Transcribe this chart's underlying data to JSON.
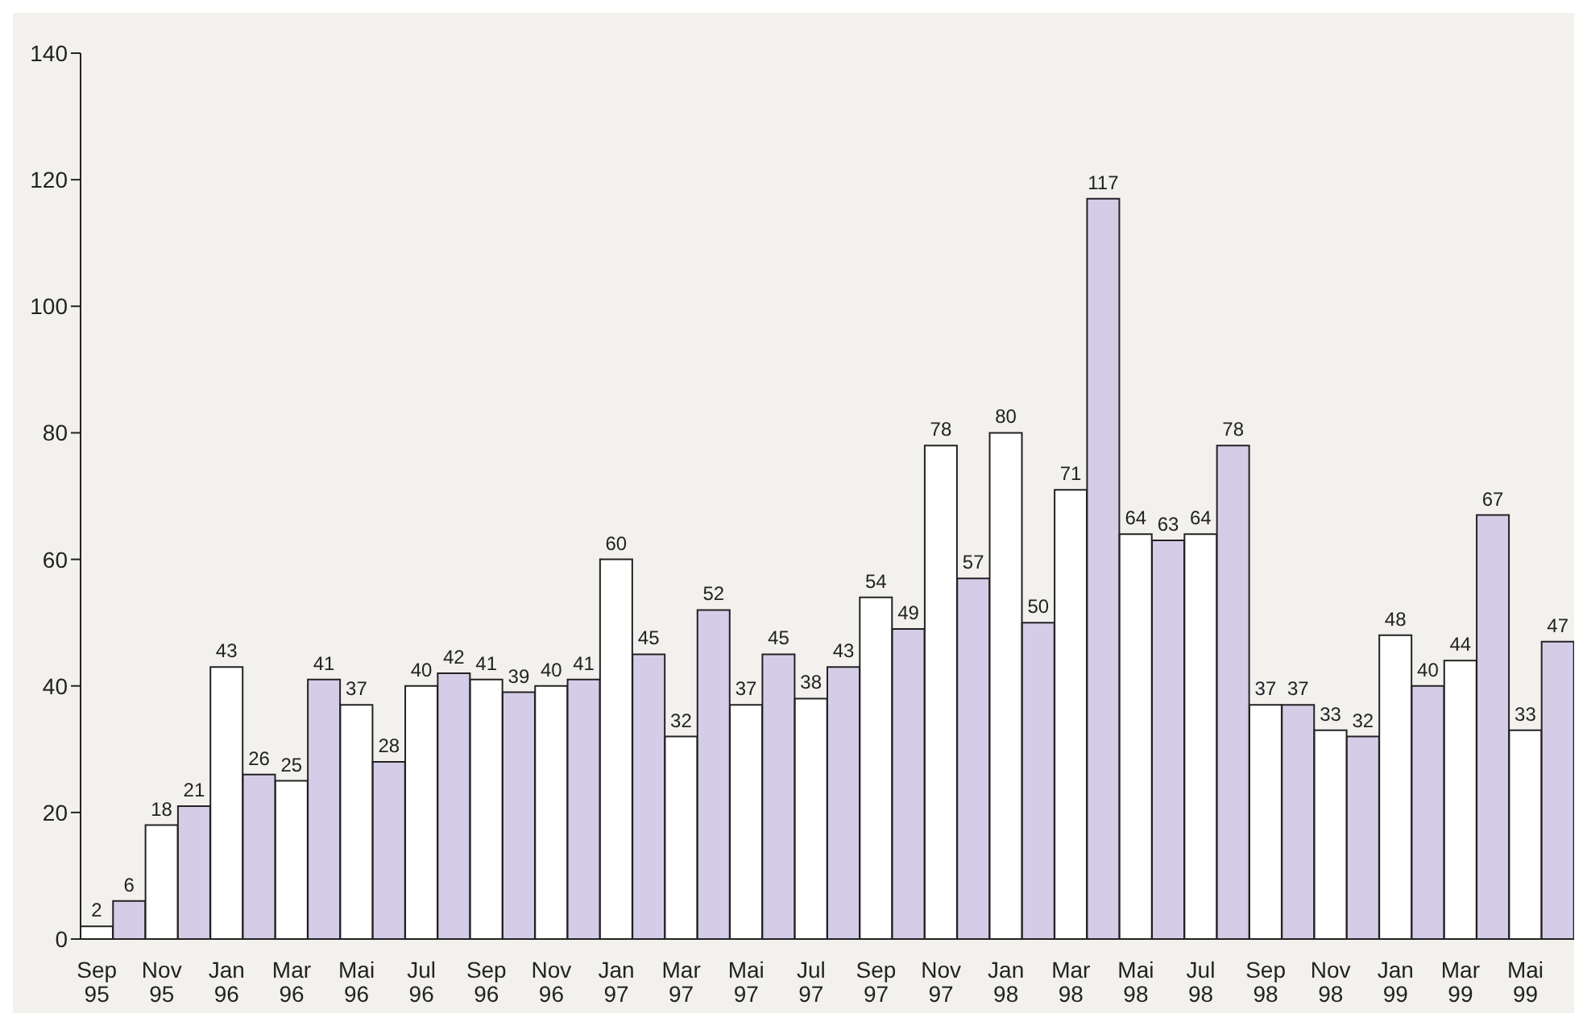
{
  "chart_data": {
    "type": "bar",
    "categories": [
      "Sep 95",
      null,
      "Nov 95",
      null,
      "Jan 96",
      null,
      "Mar 96",
      null,
      "Mai 96",
      null,
      "Jul 96",
      null,
      "Sep 96",
      null,
      "Nov 96",
      null,
      "Jan 97",
      null,
      "Mar 97",
      null,
      "Mai 97",
      null,
      "Jul 97",
      null,
      "Sep 97",
      null,
      "Nov 97",
      null,
      "Jan 98",
      null,
      "Mar 98",
      null,
      "Mai 98",
      null,
      "Jul 98",
      null,
      "Sep 98",
      null,
      "Nov 98",
      null,
      "Jan 99",
      null,
      "Mar 99",
      null,
      "Mai 99",
      null
    ],
    "values": [
      2,
      6,
      18,
      21,
      43,
      26,
      25,
      41,
      37,
      28,
      40,
      42,
      41,
      39,
      40,
      41,
      60,
      45,
      32,
      52,
      37,
      45,
      38,
      43,
      54,
      49,
      78,
      57,
      80,
      50,
      71,
      117,
      64,
      63,
      64,
      78,
      37,
      37,
      33,
      32,
      48,
      40,
      44,
      67,
      33,
      47
    ],
    "colors": [
      "#ffffff",
      "#d5cde8",
      "#ffffff",
      "#d5cde8",
      "#ffffff",
      "#d5cde8",
      "#ffffff",
      "#d5cde8",
      "#ffffff",
      "#d5cde8",
      "#ffffff",
      "#d5cde8",
      "#ffffff",
      "#d5cde8",
      "#ffffff",
      "#d5cde8",
      "#ffffff",
      "#d5cde8",
      "#ffffff",
      "#d5cde8",
      "#ffffff",
      "#d5cde8",
      "#ffffff",
      "#d5cde8",
      "#ffffff",
      "#d5cde8",
      "#ffffff",
      "#d5cde8",
      "#ffffff",
      "#d5cde8",
      "#ffffff",
      "#d5cde8",
      "#ffffff",
      "#d5cde8",
      "#ffffff",
      "#d5cde8",
      "#ffffff",
      "#d5cde8",
      "#ffffff",
      "#d5cde8",
      "#ffffff",
      "#d5cde8",
      "#ffffff",
      "#d5cde8",
      "#ffffff",
      "#d5cde8"
    ],
    "ylim": [
      0,
      140
    ],
    "yticks": [
      0,
      20,
      40,
      60,
      80,
      100,
      120,
      140
    ],
    "data_labels": true
  }
}
